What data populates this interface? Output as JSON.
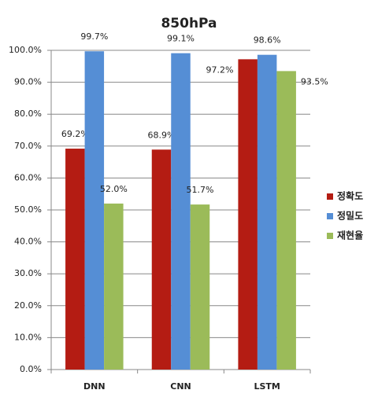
{
  "chart_data": {
    "type": "bar",
    "title": "850hPa",
    "categories": [
      "DNN",
      "CNN",
      "LSTM"
    ],
    "series": [
      {
        "name": "정확도",
        "color": "#b41c13",
        "values": [
          69.2,
          68.9,
          97.2
        ],
        "value_labels": [
          "69.2%",
          "68.9%",
          "97.2%"
        ]
      },
      {
        "name": "정밀도",
        "color": "#558ed5",
        "values": [
          99.7,
          99.1,
          98.6
        ],
        "value_labels": [
          "99.7%",
          "99.1%",
          "98.6%"
        ]
      },
      {
        "name": "재현율",
        "color": "#9bbb59",
        "values": [
          52.0,
          51.7,
          93.5
        ],
        "value_labels": [
          "52.0%",
          "51.7%",
          "93.5%"
        ]
      }
    ],
    "ylim": [
      0,
      100
    ],
    "yticks": [
      {
        "value": 0,
        "label": "0.0%"
      },
      {
        "value": 10,
        "label": "10.0%"
      },
      {
        "value": 20,
        "label": "20.0%"
      },
      {
        "value": 30,
        "label": "30.0%"
      },
      {
        "value": 40,
        "label": "40.0%"
      },
      {
        "value": 50,
        "label": "50.0%"
      },
      {
        "value": 60,
        "label": "60.0%"
      },
      {
        "value": 70,
        "label": "70.0%"
      },
      {
        "value": 80,
        "label": "80.0%"
      },
      {
        "value": 90,
        "label": "90.0%"
      },
      {
        "value": 100,
        "label": "100.0%"
      }
    ],
    "grid": true,
    "legend": "right"
  }
}
